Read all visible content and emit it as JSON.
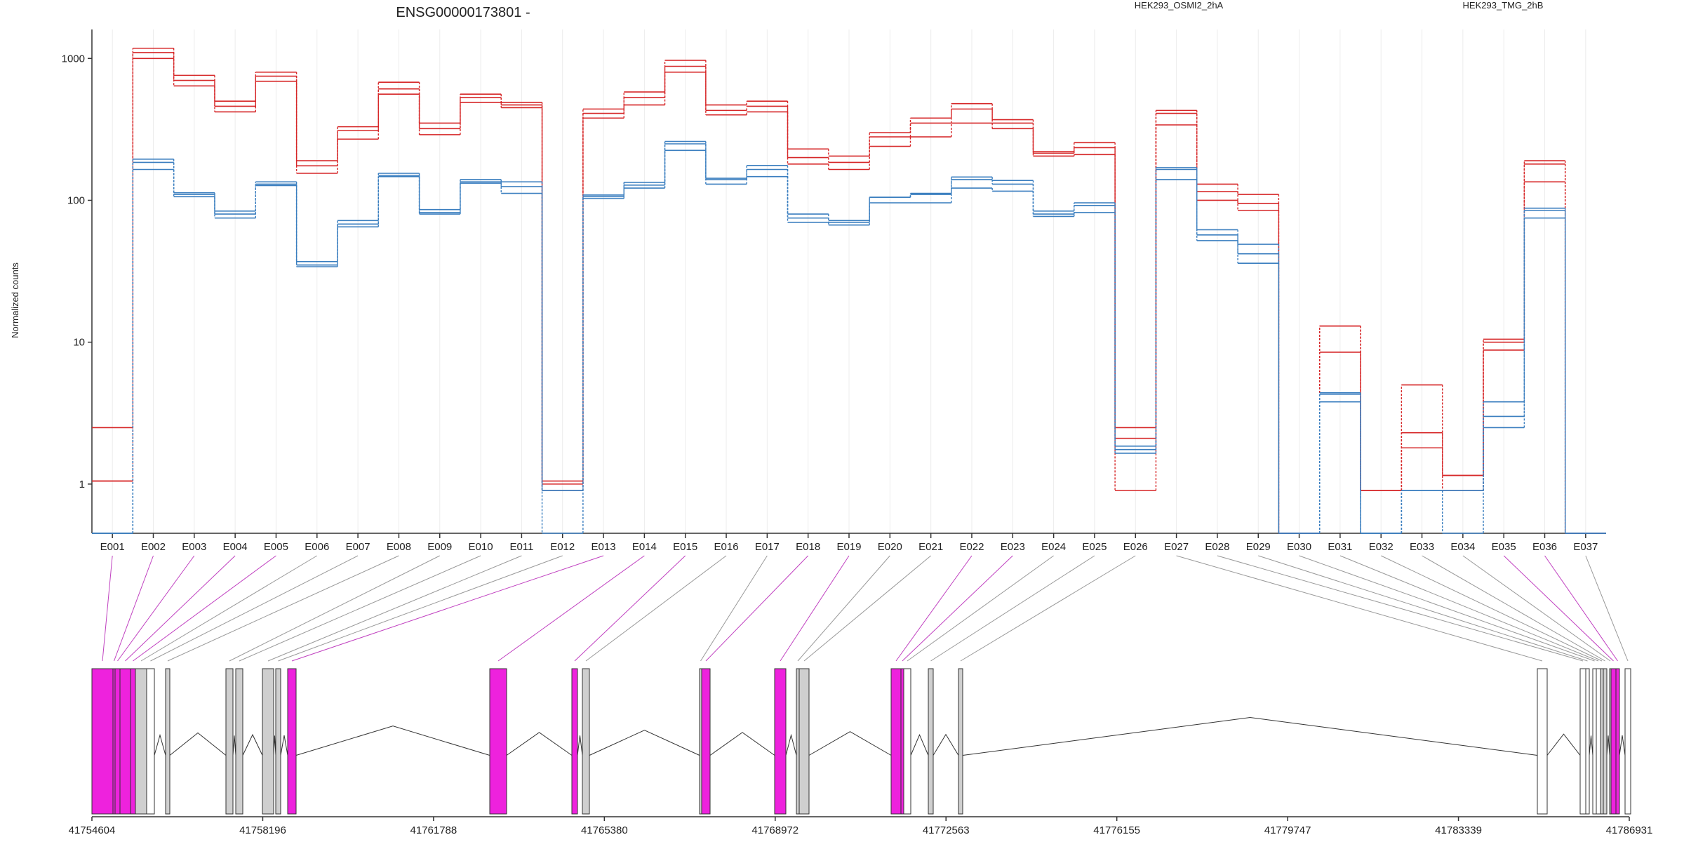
{
  "chart_data": {
    "type": "line",
    "title": "ENSG00000173801 -",
    "ylabel": "Normalized counts",
    "y_scale": "log",
    "y_ticks": [
      1,
      10,
      100,
      1000
    ],
    "y_tick_labels": [
      "1",
      "10",
      "100",
      "1000"
    ],
    "ylim": [
      0.45,
      1600
    ],
    "grid": "vertical",
    "legend_placement": "top-right",
    "categories": [
      "E001",
      "E002",
      "E003",
      "E004",
      "E005",
      "E006",
      "E007",
      "E008",
      "E009",
      "E010",
      "E011",
      "E012",
      "E013",
      "E014",
      "E015",
      "E016",
      "E017",
      "E018",
      "E019",
      "E020",
      "E021",
      "E022",
      "E023",
      "E024",
      "E025",
      "E026",
      "E027",
      "E028",
      "E029",
      "E030",
      "E031",
      "E032",
      "E033",
      "E034",
      "E035",
      "E036",
      "E037"
    ],
    "series": [
      {
        "name": "HEK293_OSMI2_2hA",
        "color": "#d62728",
        "line_style": "solid",
        "values": [
          2.5,
          1100,
          700,
          460,
          750,
          175,
          310,
          610,
          320,
          530,
          470,
          1.0,
          410,
          530,
          880,
          430,
          460,
          200,
          185,
          280,
          350,
          440,
          350,
          215,
          235,
          2.5,
          410,
          115,
          110,
          0.45,
          13,
          0.9,
          5.0,
          1.15,
          10.5,
          190,
          0.45
        ]
      },
      {
        "name": "HEK293_OSMI2_2hA",
        "color": "#d62728",
        "line_style": "solid",
        "values": [
          1.05,
          1000,
          640,
          420,
          690,
          155,
          270,
          560,
          290,
          490,
          450,
          1.05,
          380,
          470,
          800,
          400,
          420,
          180,
          165,
          240,
          280,
          350,
          320,
          205,
          210,
          0.9,
          340,
          100,
          85,
          0.45,
          8.5,
          0.9,
          1.8,
          0.9,
          8.8,
          135,
          0.45
        ]
      },
      {
        "name": "HEK293_OSMI2_2hA",
        "color": "#d62728",
        "line_style": "solid",
        "values": [
          1.05,
          1180,
          760,
          500,
          800,
          190,
          330,
          680,
          350,
          560,
          490,
          0.9,
          440,
          580,
          970,
          470,
          500,
          230,
          205,
          300,
          380,
          480,
          370,
          220,
          255,
          2.1,
          430,
          130,
          95,
          0.45,
          13,
          0.9,
          2.3,
          1.15,
          10.0,
          180,
          0.45
        ]
      },
      {
        "name": "HEK293_TMG_2hB",
        "color": "#3a7ebf",
        "line_style": "solid",
        "values": [
          0.45,
          185,
          110,
          80,
          130,
          35,
          68,
          150,
          82,
          135,
          125,
          0.9,
          106,
          128,
          250,
          140,
          165,
          75,
          70,
          105,
          110,
          140,
          130,
          80,
          92,
          1.75,
          165,
          57,
          42,
          0.45,
          4.3,
          0.45,
          0.9,
          0.9,
          3.0,
          85,
          0.45
        ]
      },
      {
        "name": "HEK293_TMG_2hB",
        "color": "#3a7ebf",
        "line_style": "solid",
        "values": [
          0.45,
          165,
          106,
          75,
          127,
          34,
          65,
          147,
          80,
          132,
          112,
          0.45,
          103,
          122,
          225,
          130,
          147,
          70,
          67,
          96,
          96,
          122,
          116,
          77,
          82,
          1.65,
          140,
          52,
          36,
          0.45,
          3.8,
          0.45,
          0.9,
          0.45,
          2.5,
          75,
          0.45
        ]
      },
      {
        "name": "HEK293_TMG_2hB",
        "color": "#3a7ebf",
        "line_style": "solid",
        "values": [
          0.45,
          195,
          113,
          84,
          135,
          37,
          72,
          155,
          86,
          140,
          135,
          0.9,
          109,
          134,
          260,
          143,
          176,
          80,
          72,
          105,
          112,
          146,
          138,
          84,
          96,
          1.85,
          170,
          62,
          49,
          0.45,
          4.4,
          0.45,
          0.9,
          0.9,
          3.8,
          88,
          0.45
        ]
      }
    ],
    "legend": [
      "HEK293_OSMI2_2hA",
      "HEK293_TMG_2hB"
    ],
    "gene_model": {
      "coordinate_ticks": [
        "41754604",
        "41758196",
        "41761788",
        "41765380",
        "41768972",
        "41772563",
        "41776155",
        "41779747",
        "41783339",
        "41786931"
      ],
      "exon_fill": [
        "magenta",
        "magenta",
        "magenta",
        "magenta",
        "magenta",
        "grey",
        "white",
        "grey",
        "grey",
        "grey",
        "grey",
        "grey",
        "magenta",
        "magenta",
        "magenta",
        "grey",
        "grey",
        "magenta",
        "magenta",
        "grey",
        "grey",
        "magenta",
        "magenta",
        "white",
        "grey",
        "grey",
        "white",
        "white",
        "white",
        "white",
        "white",
        "grey",
        "grey",
        "grey",
        "magenta",
        "magenta",
        "white"
      ]
    }
  }
}
